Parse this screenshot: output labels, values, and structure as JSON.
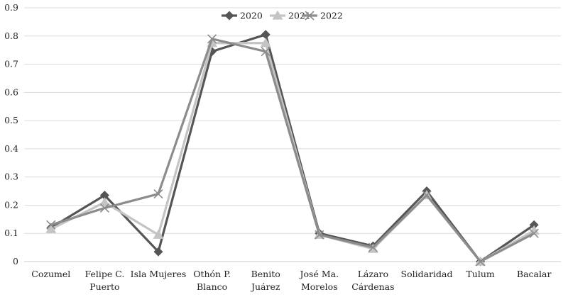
{
  "chart_data": {
    "type": "line",
    "title": "",
    "xlabel": "",
    "ylabel": "",
    "ylim": [
      0,
      0.9
    ],
    "yticks": [
      "0",
      "0.1",
      "0.2",
      "0.3",
      "0.4",
      "0.5",
      "0.6",
      "0.7",
      "0.8",
      "0.9"
    ],
    "grid": true,
    "legend_position": "top-center",
    "categories": [
      "Cozumel",
      "Felipe C. Puerto",
      "Isla Mujeres",
      "Othón P. Blanco",
      "Benito Juárez",
      "José Ma. Morelos",
      "Lázaro Cárdenas",
      "Solidaridad",
      "Tulum",
      "Bacalar"
    ],
    "category_lines": [
      [
        "Cozumel"
      ],
      [
        "Felipe C.",
        "Puerto"
      ],
      [
        "Isla Mujeres"
      ],
      [
        "Othón P.",
        "Blanco"
      ],
      [
        "Benito",
        "Juárez"
      ],
      [
        "José Ma.",
        "Morelos"
      ],
      [
        "Lázaro",
        "Cárdenas"
      ],
      [
        "Solidaridad"
      ],
      [
        "Tulum"
      ],
      [
        "Bacalar"
      ]
    ],
    "series": [
      {
        "name": "2020",
        "color": "#555555",
        "marker": "diamond",
        "values": [
          0.12,
          0.235,
          0.035,
          0.745,
          0.805,
          0.1,
          0.055,
          0.25,
          0.0,
          0.13
        ]
      },
      {
        "name": "2021",
        "color": "#c4c4c4",
        "marker": "triangle",
        "values": [
          0.115,
          0.21,
          0.095,
          0.775,
          0.775,
          0.095,
          0.045,
          0.235,
          0.0,
          0.11
        ]
      },
      {
        "name": "2022",
        "color": "#8c8c8c",
        "marker": "x",
        "values": [
          0.13,
          0.19,
          0.24,
          0.79,
          0.745,
          0.095,
          0.05,
          0.235,
          0.0,
          0.1
        ]
      }
    ]
  }
}
